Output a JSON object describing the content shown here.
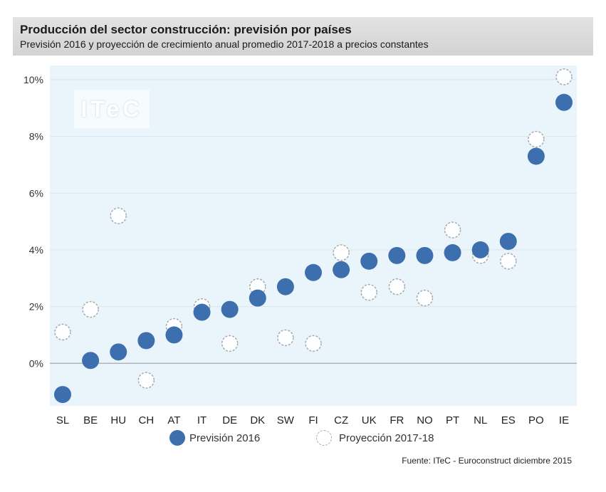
{
  "header": {
    "title": "Producción del sector construcción: previsión por países",
    "subtitle": "Previsión 2016 y proyección de crecimiento anual promedio 2017-2018 a precios constantes"
  },
  "watermark": "ITeC",
  "source": "Fuente: ITeC - Euroconstruct diciembre 2015",
  "chart_data": {
    "type": "scatter",
    "title": "Producción del sector construcción: previsión por países",
    "subtitle": "Previsión 2016 y proyección de crecimiento anual promedio 2017-2018 a precios constantes",
    "xlabel": "",
    "ylabel": "",
    "categories": [
      "SL",
      "BE",
      "HU",
      "CH",
      "AT",
      "IT",
      "DE",
      "DK",
      "SW",
      "FI",
      "CZ",
      "UK",
      "FR",
      "NO",
      "PT",
      "NL",
      "ES",
      "PO",
      "IE"
    ],
    "ylim": [
      -1.5,
      10.5
    ],
    "yticks": [
      0,
      2,
      4,
      6,
      8,
      10
    ],
    "ytick_labels": [
      "0%",
      "2%",
      "4%",
      "6%",
      "8%",
      "10%"
    ],
    "grid": true,
    "legend_position": "bottom",
    "series": [
      {
        "name": "Previsión 2016",
        "style": "filled",
        "color": "#3d6fae",
        "values": [
          -1.1,
          0.1,
          0.4,
          0.8,
          1.0,
          1.8,
          1.9,
          2.3,
          2.7,
          3.2,
          3.3,
          3.6,
          3.8,
          3.8,
          3.9,
          4.0,
          4.3,
          7.3,
          9.2
        ]
      },
      {
        "name": "Proyección 2017-18",
        "style": "hollow-dashed",
        "color": "#a9a9a9",
        "values": [
          1.1,
          1.9,
          5.2,
          -0.6,
          1.3,
          2.0,
          0.7,
          2.7,
          0.9,
          0.7,
          3.9,
          2.5,
          2.7,
          2.3,
          4.7,
          3.8,
          3.6,
          7.9,
          10.1
        ]
      }
    ]
  },
  "colors": {
    "plot_background": "#eaf5fb",
    "filled": "#3d6fae",
    "hollow_stroke": "#a9a9a9",
    "zero_line": "#a0a8ad",
    "grid": "#d7e5ed"
  }
}
